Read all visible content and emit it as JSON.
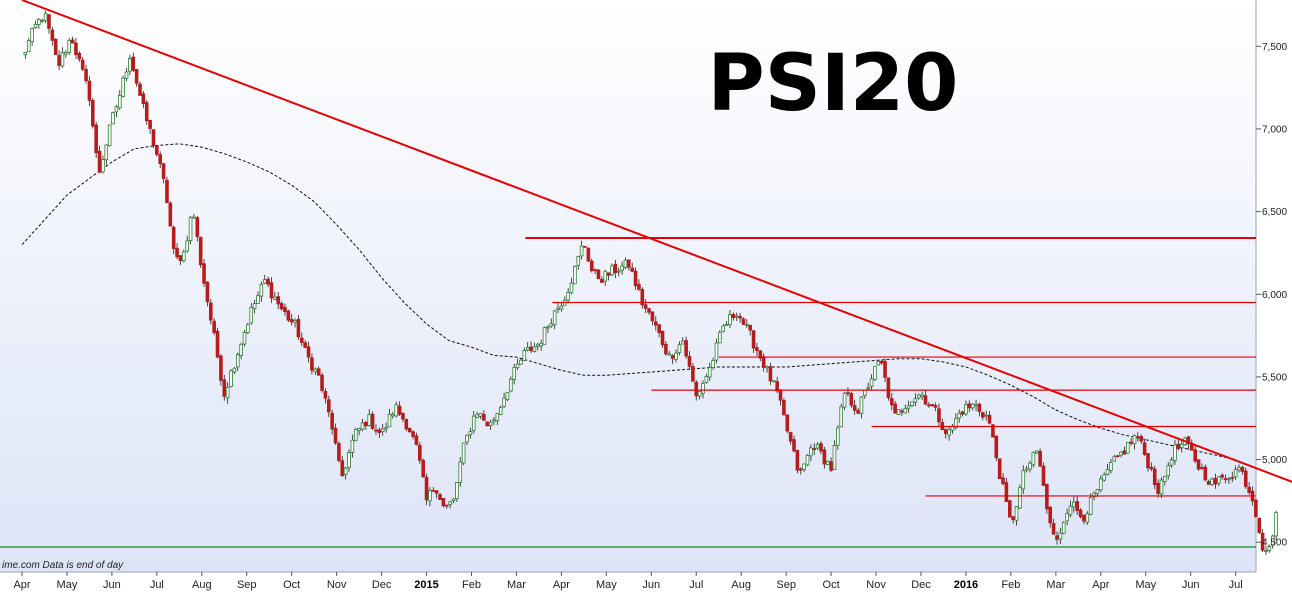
{
  "chart_data": {
    "type": "candlestick",
    "title": "PSI20",
    "credit": "ime.com  Data is end of day",
    "ylim": [
      4320,
      7780
    ],
    "y_ticks": [
      {
        "value": 4500,
        "label": "4,500"
      },
      {
        "value": 5000,
        "label": "5,000"
      },
      {
        "value": 5500,
        "label": "5,500"
      },
      {
        "value": 6000,
        "label": "6,000"
      },
      {
        "value": 6500,
        "label": "6,500"
      },
      {
        "value": 7000,
        "label": "7,000"
      },
      {
        "value": 7500,
        "label": "7,500"
      }
    ],
    "x_range": [
      0,
      28.6
    ],
    "x_ticks": [
      {
        "pos": 0,
        "label": "Apr",
        "bold": false
      },
      {
        "pos": 1,
        "label": "May",
        "bold": false
      },
      {
        "pos": 2,
        "label": "Jun",
        "bold": false
      },
      {
        "pos": 3,
        "label": "Jul",
        "bold": false
      },
      {
        "pos": 4,
        "label": "Aug",
        "bold": false
      },
      {
        "pos": 5,
        "label": "Sep",
        "bold": false
      },
      {
        "pos": 6,
        "label": "Oct",
        "bold": false
      },
      {
        "pos": 7,
        "label": "Nov",
        "bold": false
      },
      {
        "pos": 8,
        "label": "Dec",
        "bold": false
      },
      {
        "pos": 9,
        "label": "2015",
        "bold": true
      },
      {
        "pos": 10,
        "label": "Feb",
        "bold": false
      },
      {
        "pos": 11,
        "label": "Mar",
        "bold": false
      },
      {
        "pos": 12,
        "label": "Apr",
        "bold": false
      },
      {
        "pos": 13,
        "label": "May",
        "bold": false
      },
      {
        "pos": 14,
        "label": "Jun",
        "bold": false
      },
      {
        "pos": 15,
        "label": "Jul",
        "bold": false
      },
      {
        "pos": 16,
        "label": "Aug",
        "bold": false
      },
      {
        "pos": 17,
        "label": "Sep",
        "bold": false
      },
      {
        "pos": 18,
        "label": "Oct",
        "bold": false
      },
      {
        "pos": 19,
        "label": "Nov",
        "bold": false
      },
      {
        "pos": 20,
        "label": "Dec",
        "bold": false
      },
      {
        "pos": 21,
        "label": "2016",
        "bold": true
      },
      {
        "pos": 22,
        "label": "Feb",
        "bold": false
      },
      {
        "pos": 23,
        "label": "Mar",
        "bold": false
      },
      {
        "pos": 24,
        "label": "Apr",
        "bold": false
      },
      {
        "pos": 25,
        "label": "May",
        "bold": false
      },
      {
        "pos": 26,
        "label": "Jun",
        "bold": false
      },
      {
        "pos": 27,
        "label": "Jul",
        "bold": false
      }
    ],
    "price_path": [
      [
        0.0,
        7430
      ],
      [
        0.3,
        7620
      ],
      [
        0.5,
        7700
      ],
      [
        0.8,
        7380
      ],
      [
        1.1,
        7560
      ],
      [
        1.3,
        7380
      ],
      [
        1.5,
        7200
      ],
      [
        1.7,
        6720
      ],
      [
        2.0,
        7050
      ],
      [
        2.2,
        7230
      ],
      [
        2.4,
        7450
      ],
      [
        2.7,
        7120
      ],
      [
        3.0,
        6850
      ],
      [
        3.2,
        6620
      ],
      [
        3.4,
        6200
      ],
      [
        3.6,
        6250
      ],
      [
        3.8,
        6520
      ],
      [
        4.0,
        6150
      ],
      [
        4.2,
        5850
      ],
      [
        4.5,
        5400
      ],
      [
        4.8,
        5650
      ],
      [
        5.1,
        5900
      ],
      [
        5.4,
        6080
      ],
      [
        5.8,
        5900
      ],
      [
        6.1,
        5800
      ],
      [
        6.3,
        5650
      ],
      [
        6.6,
        5500
      ],
      [
        6.9,
        5200
      ],
      [
        7.1,
        4880
      ],
      [
        7.4,
        5150
      ],
      [
        7.7,
        5250
      ],
      [
        8.0,
        5150
      ],
      [
        8.3,
        5320
      ],
      [
        8.6,
        5200
      ],
      [
        8.8,
        5050
      ],
      [
        9.0,
        4750
      ],
      [
        9.2,
        4850
      ],
      [
        9.4,
        4700
      ],
      [
        9.6,
        4750
      ],
      [
        9.8,
        5050
      ],
      [
        10.1,
        5300
      ],
      [
        10.4,
        5200
      ],
      [
        10.6,
        5300
      ],
      [
        10.9,
        5500
      ],
      [
        11.2,
        5650
      ],
      [
        11.5,
        5700
      ],
      [
        11.8,
        5870
      ],
      [
        12.1,
        6000
      ],
      [
        12.3,
        6150
      ],
      [
        12.5,
        6320
      ],
      [
        12.7,
        6120
      ],
      [
        12.9,
        6100
      ],
      [
        13.2,
        6150
      ],
      [
        13.5,
        6180
      ],
      [
        13.8,
        5950
      ],
      [
        14.1,
        5800
      ],
      [
        14.4,
        5620
      ],
      [
        14.7,
        5720
      ],
      [
        15.0,
        5380
      ],
      [
        15.3,
        5550
      ],
      [
        15.6,
        5800
      ],
      [
        15.9,
        5900
      ],
      [
        16.2,
        5750
      ],
      [
        16.5,
        5580
      ],
      [
        16.8,
        5400
      ],
      [
        17.0,
        5200
      ],
      [
        17.3,
        4900
      ],
      [
        17.6,
        5100
      ],
      [
        18.0,
        4950
      ],
      [
        18.3,
        5400
      ],
      [
        18.6,
        5300
      ],
      [
        18.9,
        5500
      ],
      [
        19.1,
        5600
      ],
      [
        19.4,
        5250
      ],
      [
        19.7,
        5350
      ],
      [
        20.0,
        5400
      ],
      [
        20.3,
        5300
      ],
      [
        20.6,
        5150
      ],
      [
        20.9,
        5300
      ],
      [
        21.2,
        5330
      ],
      [
        21.5,
        5250
      ],
      [
        21.8,
        4850
      ],
      [
        22.0,
        4600
      ],
      [
        22.3,
        4930
      ],
      [
        22.6,
        5050
      ],
      [
        22.8,
        4700
      ],
      [
        23.0,
        4480
      ],
      [
        23.3,
        4750
      ],
      [
        23.6,
        4650
      ],
      [
        23.9,
        4800
      ],
      [
        24.2,
        4950
      ],
      [
        24.5,
        5050
      ],
      [
        24.8,
        5150
      ],
      [
        25.1,
        4950
      ],
      [
        25.3,
        4800
      ],
      [
        25.6,
        5050
      ],
      [
        25.9,
        5100
      ],
      [
        26.2,
        4950
      ],
      [
        26.5,
        4850
      ],
      [
        26.8,
        4900
      ],
      [
        27.1,
        4950
      ],
      [
        27.4,
        4750
      ],
      [
        27.6,
        4480
      ],
      [
        27.75,
        4450
      ],
      [
        27.9,
        4680
      ]
    ],
    "moving_average": [
      [
        0.0,
        6300
      ],
      [
        0.5,
        6450
      ],
      [
        1.0,
        6600
      ],
      [
        1.5,
        6700
      ],
      [
        2.0,
        6800
      ],
      [
        2.5,
        6880
      ],
      [
        3.0,
        6900
      ],
      [
        3.5,
        6910
      ],
      [
        4.0,
        6890
      ],
      [
        4.5,
        6850
      ],
      [
        5.0,
        6800
      ],
      [
        5.5,
        6740
      ],
      [
        6.0,
        6660
      ],
      [
        6.5,
        6560
      ],
      [
        7.0,
        6420
      ],
      [
        7.5,
        6270
      ],
      [
        8.0,
        6100
      ],
      [
        8.5,
        5950
      ],
      [
        9.0,
        5820
      ],
      [
        9.5,
        5720
      ],
      [
        10.0,
        5680
      ],
      [
        10.5,
        5630
      ],
      [
        11.0,
        5620
      ],
      [
        11.5,
        5580
      ],
      [
        12.0,
        5540
      ],
      [
        12.5,
        5510
      ],
      [
        13.0,
        5510
      ],
      [
        13.5,
        5520
      ],
      [
        14.0,
        5530
      ],
      [
        14.5,
        5540
      ],
      [
        15.0,
        5550
      ],
      [
        15.5,
        5560
      ],
      [
        16.0,
        5560
      ],
      [
        16.5,
        5560
      ],
      [
        17.0,
        5560
      ],
      [
        17.5,
        5570
      ],
      [
        18.0,
        5580
      ],
      [
        18.5,
        5590
      ],
      [
        19.0,
        5600
      ],
      [
        19.5,
        5610
      ],
      [
        20.0,
        5610
      ],
      [
        20.5,
        5590
      ],
      [
        21.0,
        5560
      ],
      [
        21.5,
        5510
      ],
      [
        22.0,
        5450
      ],
      [
        22.5,
        5380
      ],
      [
        23.0,
        5300
      ],
      [
        23.5,
        5240
      ],
      [
        24.0,
        5190
      ],
      [
        24.5,
        5150
      ],
      [
        25.0,
        5120
      ],
      [
        25.5,
        5090
      ],
      [
        26.0,
        5060
      ],
      [
        26.5,
        5030
      ],
      [
        27.0,
        5000
      ]
    ],
    "trendline": [
      [
        0.0,
        7780
      ],
      [
        28.6,
        4830
      ]
    ],
    "horizontal_levels": [
      {
        "value": 6340,
        "x_start": 11.2,
        "thick": true
      },
      {
        "value": 5950,
        "x_start": 11.8,
        "thick": false
      },
      {
        "value": 5620,
        "x_start": 15.5,
        "thick": false
      },
      {
        "value": 5420,
        "x_start": 14.0,
        "thick": false
      },
      {
        "value": 5200,
        "x_start": 18.9,
        "thick": false
      },
      {
        "value": 4780,
        "x_start": 20.1,
        "thick": false
      }
    ],
    "colors": {
      "trendline": "#e60000",
      "levels": "#e60000",
      "moving_average": "#111111",
      "up_candle": "#2e7d32",
      "down_candle": "#b71c1c",
      "baseline": "#1a8a1a",
      "background_top": "#ffffff",
      "background_bottom": "#dde4f7"
    }
  }
}
